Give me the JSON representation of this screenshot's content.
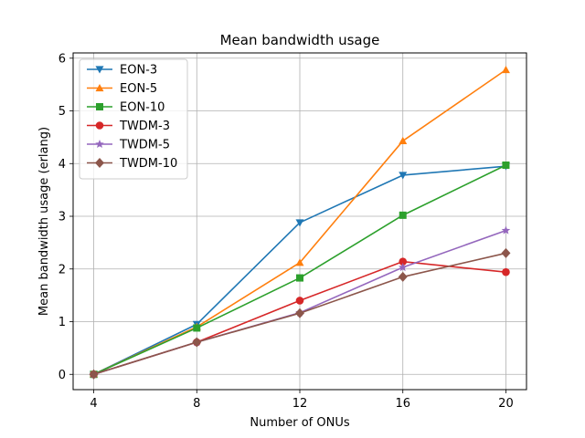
{
  "chart_data": {
    "type": "line",
    "title": "Mean bandwidth usage",
    "xlabel": "Number of ONUs",
    "ylabel": "Mean bandwidth usage (erlang)",
    "x": [
      4,
      8,
      12,
      16,
      20
    ],
    "xticks": [
      "4",
      "8",
      "12",
      "16",
      "20"
    ],
    "yticks": [
      "0",
      "1",
      "2",
      "3",
      "4",
      "5",
      "6"
    ],
    "xlim": [
      3.2,
      20.8
    ],
    "ylim": [
      -0.29,
      6.1
    ],
    "grid": true,
    "legend_position": "top-left",
    "series": [
      {
        "name": "EON-3",
        "color": "#1f77b4",
        "marker": "triangle-down",
        "values": [
          0,
          0.95,
          2.88,
          3.78,
          3.95
        ]
      },
      {
        "name": "EON-5",
        "color": "#ff7f0e",
        "marker": "triangle-up",
        "values": [
          0,
          0.9,
          2.12,
          4.43,
          5.78
        ]
      },
      {
        "name": "EON-10",
        "color": "#2ca02c",
        "marker": "square",
        "values": [
          0,
          0.88,
          1.83,
          3.02,
          3.97
        ]
      },
      {
        "name": "TWDM-3",
        "color": "#d62728",
        "marker": "circle",
        "values": [
          0,
          0.61,
          1.4,
          2.14,
          1.94
        ]
      },
      {
        "name": "TWDM-5",
        "color": "#9467bd",
        "marker": "star",
        "values": [
          0,
          0.61,
          1.17,
          2.03,
          2.73
        ]
      },
      {
        "name": "TWDM-10",
        "color": "#8c564b",
        "marker": "diamond",
        "values": [
          0,
          0.61,
          1.16,
          1.85,
          2.3
        ]
      }
    ]
  }
}
